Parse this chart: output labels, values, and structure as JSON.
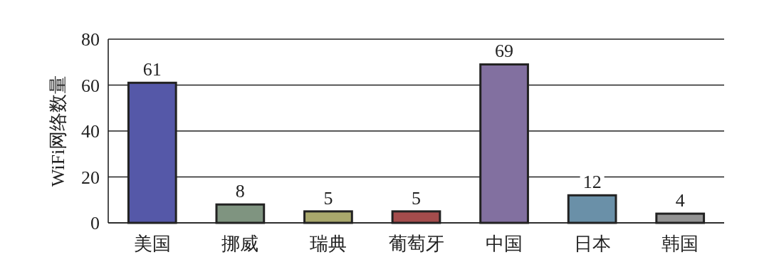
{
  "chart_data": {
    "type": "bar",
    "ylabel": "WiFi网络数量",
    "categories": [
      "美国",
      "挪威",
      "瑞典",
      "葡萄牙",
      "中国",
      "日本",
      "韩国"
    ],
    "values": [
      61,
      8,
      5,
      5,
      69,
      12,
      4
    ],
    "colors": [
      "#5558a8",
      "#7f9480",
      "#a9a86c",
      "#a44c4c",
      "#8270a0",
      "#6a90a8",
      "#939393"
    ],
    "ylim": [
      0,
      80
    ],
    "yticks": [
      0,
      20,
      40,
      60,
      80
    ],
    "grid": "y",
    "data_labels": true
  }
}
